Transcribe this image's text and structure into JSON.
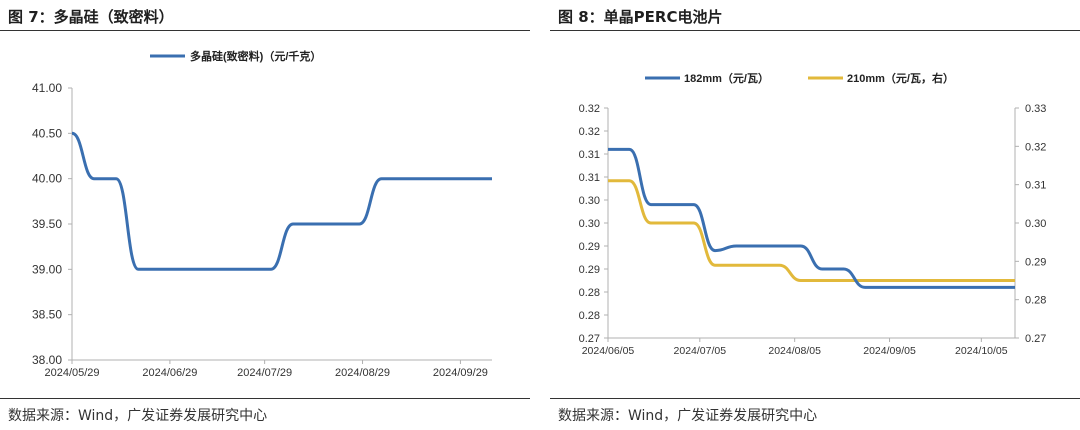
{
  "figures": [
    {
      "title": "图 7：多晶硅（致密料）",
      "source": "数据来源：Wind，广发证券发展研究中心"
    },
    {
      "title": "图 8：单晶PERC电池片",
      "source": "数据来源：Wind，广发证券发展研究中心"
    }
  ],
  "chart_data": [
    {
      "type": "line",
      "title": "",
      "legend": [
        "多晶硅(致密料)（元/千克）"
      ],
      "legend_position": "top",
      "x": [
        "2024/05/29",
        "2024/06/05",
        "2024/06/12",
        "2024/06/19",
        "2024/06/26",
        "2024/07/03",
        "2024/07/10",
        "2024/07/17",
        "2024/07/24",
        "2024/07/31",
        "2024/08/07",
        "2024/08/14",
        "2024/08/21",
        "2024/08/28",
        "2024/09/04",
        "2024/09/11",
        "2024/09/18",
        "2024/09/25",
        "2024/10/02",
        "2024/10/09"
      ],
      "x_tick_labels": [
        "2024/05/29",
        "2024/06/29",
        "2024/07/29",
        "2024/08/29",
        "2024/09/29"
      ],
      "series": [
        {
          "name": "多晶硅(致密料)（元/千克）",
          "color": "#3a6fb0",
          "values": [
            40.5,
            40.0,
            40.0,
            39.0,
            39.0,
            39.0,
            39.0,
            39.0,
            39.0,
            39.0,
            39.5,
            39.5,
            39.5,
            39.5,
            40.0,
            40.0,
            40.0,
            40.0,
            40.0,
            40.0
          ]
        }
      ],
      "y_ticks": [
        "38.00",
        "38.50",
        "39.00",
        "39.50",
        "40.00",
        "40.50",
        "41.00"
      ],
      "ylim": [
        38,
        41
      ],
      "grid": false
    },
    {
      "type": "line",
      "title": "",
      "legend": [
        "182mm（元/瓦）",
        "210mm（元/瓦，右）"
      ],
      "legend_position": "top",
      "x": [
        "2024/06/05",
        "2024/06/12",
        "2024/06/19",
        "2024/06/26",
        "2024/07/03",
        "2024/07/10",
        "2024/07/17",
        "2024/07/24",
        "2024/07/31",
        "2024/08/07",
        "2024/08/14",
        "2024/08/21",
        "2024/08/28",
        "2024/09/04",
        "2024/09/11",
        "2024/09/18",
        "2024/09/25",
        "2024/10/02",
        "2024/10/09",
        "2024/10/16"
      ],
      "x_tick_labels": [
        "2024/06/05",
        "2024/07/05",
        "2024/08/05",
        "2024/09/05",
        "2024/10/05"
      ],
      "series": [
        {
          "name": "182mm（元/瓦）",
          "color": "#3a6fb0",
          "axis": "left",
          "values": [
            0.311,
            0.311,
            0.299,
            0.299,
            0.299,
            0.289,
            0.29,
            0.29,
            0.29,
            0.29,
            0.285,
            0.285,
            0.281,
            0.281,
            0.281,
            0.281,
            0.281,
            0.281,
            0.281,
            0.281
          ]
        },
        {
          "name": "210mm（元/瓦，右）",
          "color": "#e2b93b",
          "axis": "right",
          "values": [
            0.311,
            0.311,
            0.3,
            0.3,
            0.3,
            0.289,
            0.289,
            0.289,
            0.289,
            0.285,
            0.285,
            0.285,
            0.285,
            0.285,
            0.285,
            0.285,
            0.285,
            0.285,
            0.285,
            0.285
          ]
        }
      ],
      "y_left_ticks": [
        "0.27",
        "0.28",
        "0.28",
        "0.29",
        "0.29",
        "0.30",
        "0.30",
        "0.31",
        "0.31",
        "0.32",
        "0.32"
      ],
      "ylim_left": [
        0.27,
        0.32
      ],
      "y_right_ticks": [
        "0.27",
        "0.28",
        "0.29",
        "0.30",
        "0.31",
        "0.32",
        "0.33"
      ],
      "ylim_right": [
        0.27,
        0.33
      ],
      "grid": false
    }
  ]
}
